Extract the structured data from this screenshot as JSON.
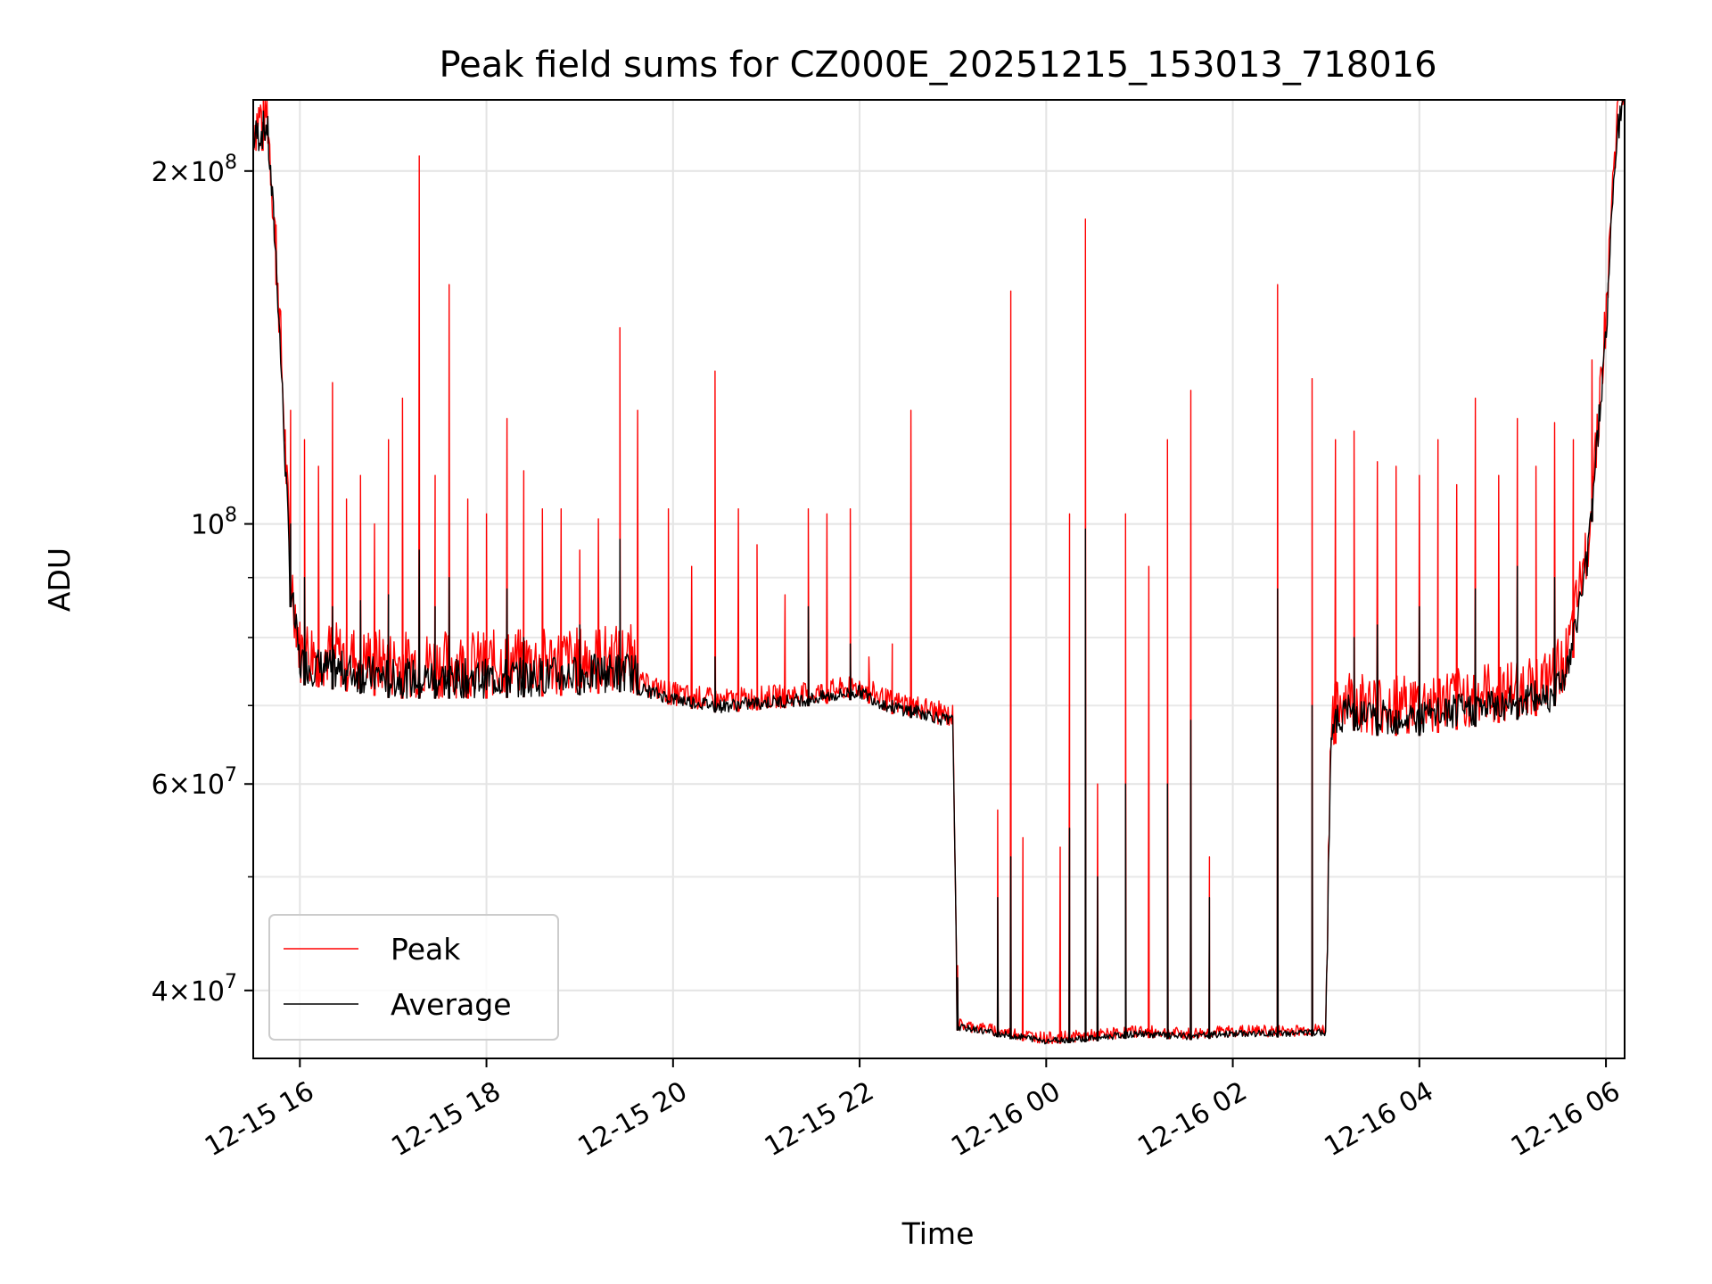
{
  "chart_data": {
    "type": "line",
    "title": "Peak field sums for CZ000E_20251215_153013_718016",
    "xlabel": "Time",
    "ylabel": "ADU",
    "yscale": "log",
    "xlim": [
      15.5,
      30.2
    ],
    "ylim": [
      35000000,
      230000000
    ],
    "grid": true,
    "legend_position": "lower-left",
    "x_ticks": [
      {
        "value": 16,
        "label": "12-15 16"
      },
      {
        "value": 18,
        "label": "12-15 18"
      },
      {
        "value": 20,
        "label": "12-15 20"
      },
      {
        "value": 22,
        "label": "12-15 22"
      },
      {
        "value": 24,
        "label": "12-16 00"
      },
      {
        "value": 26,
        "label": "12-16 02"
      },
      {
        "value": 28,
        "label": "12-16 04"
      },
      {
        "value": 30,
        "label": "12-16 06"
      }
    ],
    "y_major_ticks": [
      {
        "value": 40000000,
        "base": "4",
        "mult": "×",
        "power": "10",
        "exp": "7"
      },
      {
        "value": 60000000,
        "base": "6",
        "mult": "×",
        "power": "10",
        "exp": "7"
      },
      {
        "value": 100000000,
        "base": "",
        "mult": "",
        "power": "10",
        "exp": "8"
      },
      {
        "value": 200000000,
        "base": "2",
        "mult": "×",
        "power": "10",
        "exp": "8"
      }
    ],
    "y_minor_ticks": [
      50000000,
      70000000,
      80000000,
      90000000
    ],
    "baseline": {
      "x": [
        15.5,
        15.65,
        15.75,
        15.82,
        15.9,
        16.0,
        16.5,
        17.0,
        18.0,
        19.0,
        19.5,
        20.0,
        20.5,
        21.0,
        21.5,
        22.0,
        22.3,
        22.7,
        22.95,
        23.0,
        23.05,
        23.5,
        24.0,
        24.5,
        25.0,
        25.5,
        26.0,
        26.5,
        26.95,
        27.0,
        27.05,
        27.2,
        27.5,
        28.0,
        28.5,
        29.0,
        29.4,
        29.6,
        29.8,
        30.0,
        30.1,
        30.2
      ],
      "y": [
        205000000,
        210000000,
        160000000,
        120000000,
        85000000,
        73000000,
        72000000,
        71000000,
        71000000,
        71500000,
        72000000,
        70000000,
        69000000,
        69500000,
        70000000,
        71000000,
        69000000,
        68000000,
        67000000,
        67000000,
        37000000,
        36500000,
        36000000,
        36200000,
        36500000,
        36300000,
        36500000,
        36500000,
        36600000,
        36600000,
        64000000,
        67000000,
        66000000,
        66000000,
        67000000,
        68000000,
        69000000,
        73000000,
        90000000,
        140000000,
        200000000,
        230000000
      ]
    },
    "series": [
      {
        "name": "Peak",
        "color": "#ff0000",
        "spikes": [
          {
            "x": 15.6,
            "value": 220000000
          },
          {
            "x": 15.75,
            "value": 165000000
          },
          {
            "x": 15.9,
            "value": 125000000
          },
          {
            "x": 16.05,
            "value": 118000000
          },
          {
            "x": 16.2,
            "value": 112000000
          },
          {
            "x": 16.35,
            "value": 132000000
          },
          {
            "x": 16.5,
            "value": 105000000
          },
          {
            "x": 16.65,
            "value": 110000000
          },
          {
            "x": 16.8,
            "value": 100000000
          },
          {
            "x": 16.95,
            "value": 118000000
          },
          {
            "x": 17.1,
            "value": 128000000
          },
          {
            "x": 17.28,
            "value": 206000000
          },
          {
            "x": 17.45,
            "value": 110000000
          },
          {
            "x": 17.6,
            "value": 160000000
          },
          {
            "x": 17.8,
            "value": 105000000
          },
          {
            "x": 18.0,
            "value": 102000000
          },
          {
            "x": 18.22,
            "value": 123000000
          },
          {
            "x": 18.4,
            "value": 111000000
          },
          {
            "x": 18.6,
            "value": 103000000
          },
          {
            "x": 18.8,
            "value": 103000000
          },
          {
            "x": 19.0,
            "value": 95000000
          },
          {
            "x": 19.2,
            "value": 101000000
          },
          {
            "x": 19.43,
            "value": 147000000
          },
          {
            "x": 19.62,
            "value": 125000000
          },
          {
            "x": 19.95,
            "value": 103000000
          },
          {
            "x": 20.2,
            "value": 92000000
          },
          {
            "x": 20.45,
            "value": 135000000
          },
          {
            "x": 20.7,
            "value": 103000000
          },
          {
            "x": 20.9,
            "value": 96000000
          },
          {
            "x": 21.2,
            "value": 87000000
          },
          {
            "x": 21.45,
            "value": 103000000
          },
          {
            "x": 21.65,
            "value": 102000000
          },
          {
            "x": 21.9,
            "value": 103000000
          },
          {
            "x": 22.1,
            "value": 77000000
          },
          {
            "x": 22.35,
            "value": 79000000
          },
          {
            "x": 22.55,
            "value": 125000000
          },
          {
            "x": 23.05,
            "value": 42000000
          },
          {
            "x": 23.48,
            "value": 57000000
          },
          {
            "x": 23.62,
            "value": 158000000
          },
          {
            "x": 23.75,
            "value": 54000000
          },
          {
            "x": 24.15,
            "value": 53000000
          },
          {
            "x": 24.25,
            "value": 102000000
          },
          {
            "x": 24.42,
            "value": 182000000
          },
          {
            "x": 24.55,
            "value": 60000000
          },
          {
            "x": 24.85,
            "value": 102000000
          },
          {
            "x": 25.1,
            "value": 92000000
          },
          {
            "x": 25.3,
            "value": 118000000
          },
          {
            "x": 25.55,
            "value": 130000000
          },
          {
            "x": 25.75,
            "value": 52000000
          },
          {
            "x": 26.48,
            "value": 160000000
          },
          {
            "x": 26.85,
            "value": 133000000
          },
          {
            "x": 27.1,
            "value": 118000000
          },
          {
            "x": 27.3,
            "value": 120000000
          },
          {
            "x": 27.55,
            "value": 113000000
          },
          {
            "x": 27.75,
            "value": 112000000
          },
          {
            "x": 28.0,
            "value": 110000000
          },
          {
            "x": 28.2,
            "value": 118000000
          },
          {
            "x": 28.4,
            "value": 108000000
          },
          {
            "x": 28.6,
            "value": 128000000
          },
          {
            "x": 28.85,
            "value": 110000000
          },
          {
            "x": 29.05,
            "value": 123000000
          },
          {
            "x": 29.25,
            "value": 112000000
          },
          {
            "x": 29.45,
            "value": 122000000
          },
          {
            "x": 29.65,
            "value": 118000000
          },
          {
            "x": 29.85,
            "value": 138000000
          }
        ]
      },
      {
        "name": "Average",
        "color": "#000000",
        "spikes": [
          {
            "x": 15.9,
            "value": 100000000
          },
          {
            "x": 16.05,
            "value": 90000000
          },
          {
            "x": 16.35,
            "value": 85000000
          },
          {
            "x": 16.65,
            "value": 86000000
          },
          {
            "x": 16.95,
            "value": 87000000
          },
          {
            "x": 17.28,
            "value": 95000000
          },
          {
            "x": 17.45,
            "value": 85000000
          },
          {
            "x": 17.6,
            "value": 90000000
          },
          {
            "x": 18.22,
            "value": 88000000
          },
          {
            "x": 18.4,
            "value": 80000000
          },
          {
            "x": 19.0,
            "value": 82000000
          },
          {
            "x": 19.43,
            "value": 97000000
          },
          {
            "x": 19.62,
            "value": 76000000
          },
          {
            "x": 20.45,
            "value": 77000000
          },
          {
            "x": 21.45,
            "value": 85000000
          },
          {
            "x": 21.9,
            "value": 79000000
          },
          {
            "x": 22.55,
            "value": 70000000
          },
          {
            "x": 23.05,
            "value": 41000000
          },
          {
            "x": 23.48,
            "value": 48000000
          },
          {
            "x": 23.62,
            "value": 52000000
          },
          {
            "x": 24.25,
            "value": 55000000
          },
          {
            "x": 24.42,
            "value": 99000000
          },
          {
            "x": 24.55,
            "value": 50000000
          },
          {
            "x": 24.85,
            "value": 60000000
          },
          {
            "x": 25.3,
            "value": 60000000
          },
          {
            "x": 25.55,
            "value": 68000000
          },
          {
            "x": 25.75,
            "value": 48000000
          },
          {
            "x": 26.48,
            "value": 88000000
          },
          {
            "x": 26.85,
            "value": 70000000
          },
          {
            "x": 27.3,
            "value": 80000000
          },
          {
            "x": 27.55,
            "value": 82000000
          },
          {
            "x": 28.0,
            "value": 85000000
          },
          {
            "x": 28.6,
            "value": 88000000
          },
          {
            "x": 29.05,
            "value": 92000000
          },
          {
            "x": 29.45,
            "value": 90000000
          },
          {
            "x": 29.85,
            "value": 105000000
          }
        ]
      }
    ]
  }
}
